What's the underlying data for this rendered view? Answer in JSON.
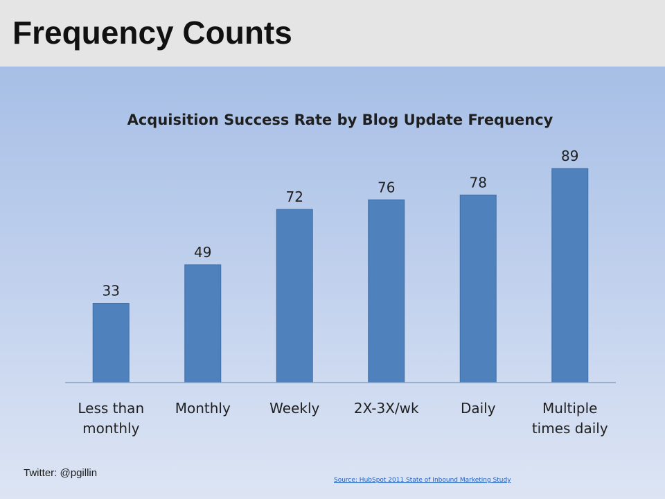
{
  "slide": {
    "title": "Frequency Counts",
    "twitter": "Twitter: @pgillin",
    "source": "Source: HubSpot 2011 State of Inbound Marketing Study"
  },
  "colors": {
    "header_bg": "#e5e5e5",
    "bar": "#4f81bd",
    "source_link": "#1f5fbf"
  },
  "chart_data": {
    "type": "bar",
    "title": "Acquisition Success Rate by Blog Update Frequency",
    "categories": [
      [
        "Less than",
        "monthly"
      ],
      [
        "Monthly"
      ],
      [
        "Weekly"
      ],
      [
        "2X-3X/wk"
      ],
      [
        "Daily"
      ],
      [
        "Multiple",
        "times daily"
      ]
    ],
    "values": [
      33,
      49,
      72,
      76,
      78,
      89
    ],
    "data_labels": true,
    "ylim": [
      0,
      100
    ],
    "grid": false,
    "legend": "none",
    "xlabel": "",
    "ylabel": ""
  }
}
